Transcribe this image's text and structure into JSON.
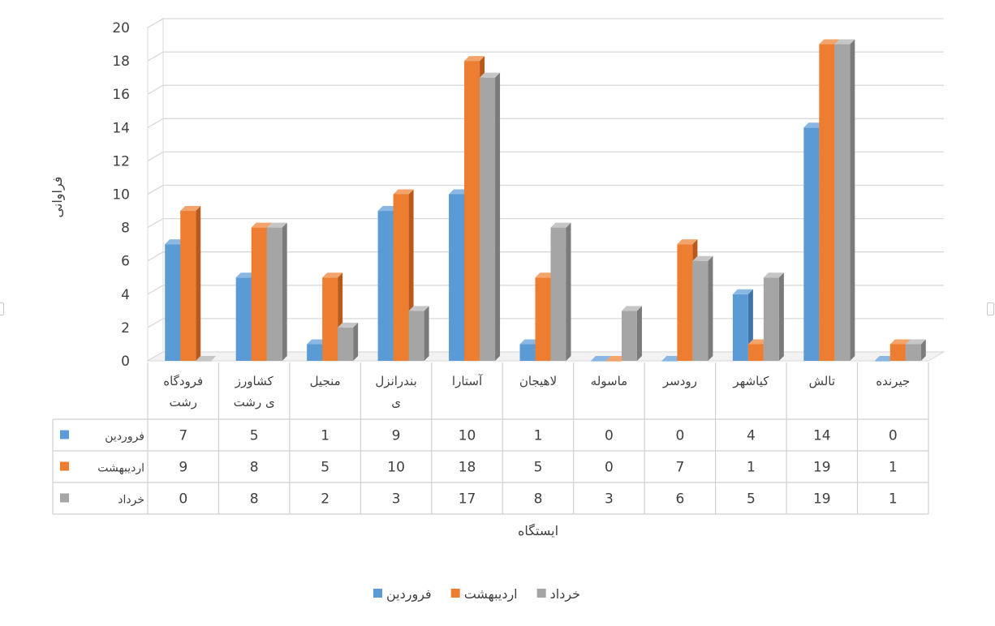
{
  "chart_data": {
    "type": "bar",
    "y_axis_title": "فراوانی",
    "x_axis_title": "ایستگاه",
    "categories": [
      [
        "فرودگاه",
        "رشت"
      ],
      [
        "کشاورز",
        "ی رشت"
      ],
      [
        "منجیل"
      ],
      [
        "بندرانزل",
        "ی"
      ],
      [
        "آستارا"
      ],
      [
        "لاهیجان"
      ],
      [
        "ماسوله"
      ],
      [
        "رودسر"
      ],
      [
        "کیاشهر"
      ],
      [
        "تالش"
      ],
      [
        "جیرنده"
      ]
    ],
    "series": [
      {
        "name": "فروردین",
        "color": "#5b9bd5",
        "side": "#3f75a8",
        "top": "#8ab8e3",
        "values": [
          7,
          5,
          1,
          9,
          10,
          1,
          0,
          0,
          4,
          14,
          0
        ]
      },
      {
        "name": "اردیبهشت",
        "color": "#ed7d31",
        "side": "#b95a1c",
        "top": "#f3a46a",
        "values": [
          9,
          8,
          5,
          10,
          18,
          5,
          0,
          7,
          1,
          19,
          1
        ]
      },
      {
        "name": "خرداد",
        "color": "#a5a5a5",
        "side": "#7b7b7b",
        "top": "#c6c6c6",
        "values": [
          0,
          8,
          2,
          3,
          17,
          8,
          3,
          6,
          5,
          19,
          1
        ]
      }
    ],
    "ylim": [
      0,
      20
    ],
    "y_ticks": [
      0,
      2,
      4,
      6,
      8,
      10,
      12,
      14,
      16,
      18,
      20
    ],
    "grid": true,
    "legend_position": "bottom",
    "data_table": true
  }
}
